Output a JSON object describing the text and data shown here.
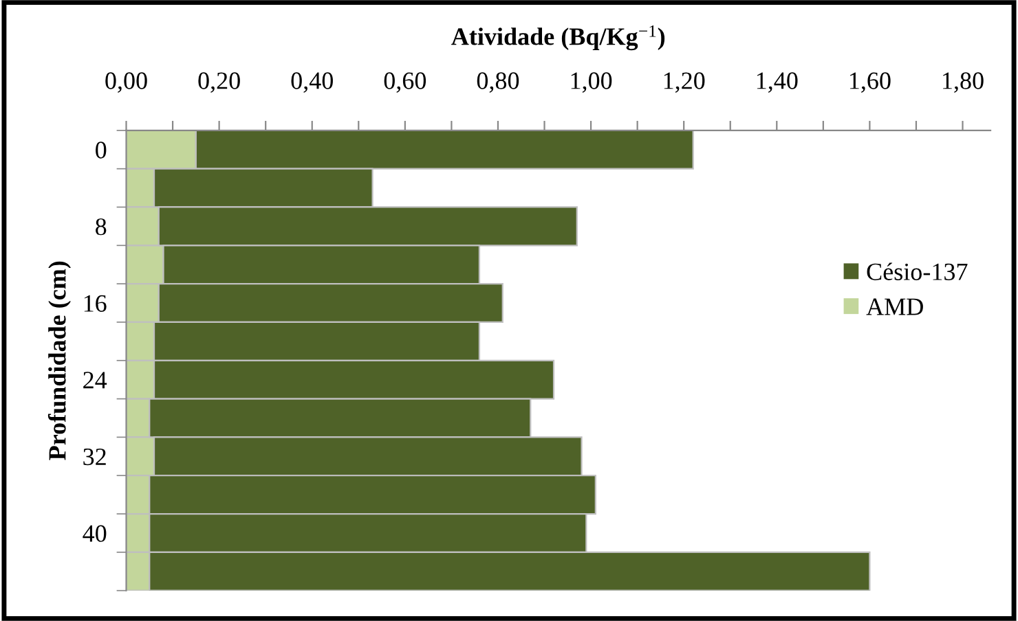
{
  "chart_data": {
    "type": "bar",
    "orientation": "horizontal",
    "stacked": true,
    "xlabel": "Atividade (Bq/Kg$^{−1}$)",
    "ylabel": "Profundidade (cm)",
    "categories": [
      "0",
      null,
      "8",
      null,
      "16",
      null,
      "24",
      null,
      "32",
      null,
      "40",
      null
    ],
    "series": [
      {
        "name": "AMD",
        "color": "#c3d69b",
        "values": [
          0.15,
          0.06,
          0.07,
          0.08,
          0.07,
          0.06,
          0.06,
          0.05,
          0.06,
          0.05,
          0.05,
          0.05
        ]
      },
      {
        "name": "Césio-137",
        "color": "#4f6228",
        "values": [
          1.07,
          0.47,
          0.9,
          0.68,
          0.74,
          0.7,
          0.86,
          0.82,
          0.92,
          0.96,
          0.94,
          1.55
        ]
      }
    ],
    "xlim": [
      0,
      1.86
    ],
    "xticks": [
      {
        "value": 0,
        "label": "0,00"
      },
      {
        "value": 0.1,
        "label": null
      },
      {
        "value": 0.2,
        "label": "0,20"
      },
      {
        "value": 0.3,
        "label": null
      },
      {
        "value": 0.4,
        "label": "0,40"
      },
      {
        "value": 0.5,
        "label": null
      },
      {
        "value": 0.6,
        "label": "0,60"
      },
      {
        "value": 0.7,
        "label": null
      },
      {
        "value": 0.8,
        "label": "0,80"
      },
      {
        "value": 0.9,
        "label": null
      },
      {
        "value": 1.0,
        "label": "1,00"
      },
      {
        "value": 1.1,
        "label": null
      },
      {
        "value": 1.2,
        "label": "1,20"
      },
      {
        "value": 1.3,
        "label": null
      },
      {
        "value": 1.4,
        "label": "1,40"
      },
      {
        "value": 1.5,
        "label": null
      },
      {
        "value": 1.6,
        "label": "1,60"
      },
      {
        "value": 1.7,
        "label": null
      },
      {
        "value": 1.8,
        "label": "1,80"
      }
    ],
    "legend": "right",
    "grid": false
  }
}
